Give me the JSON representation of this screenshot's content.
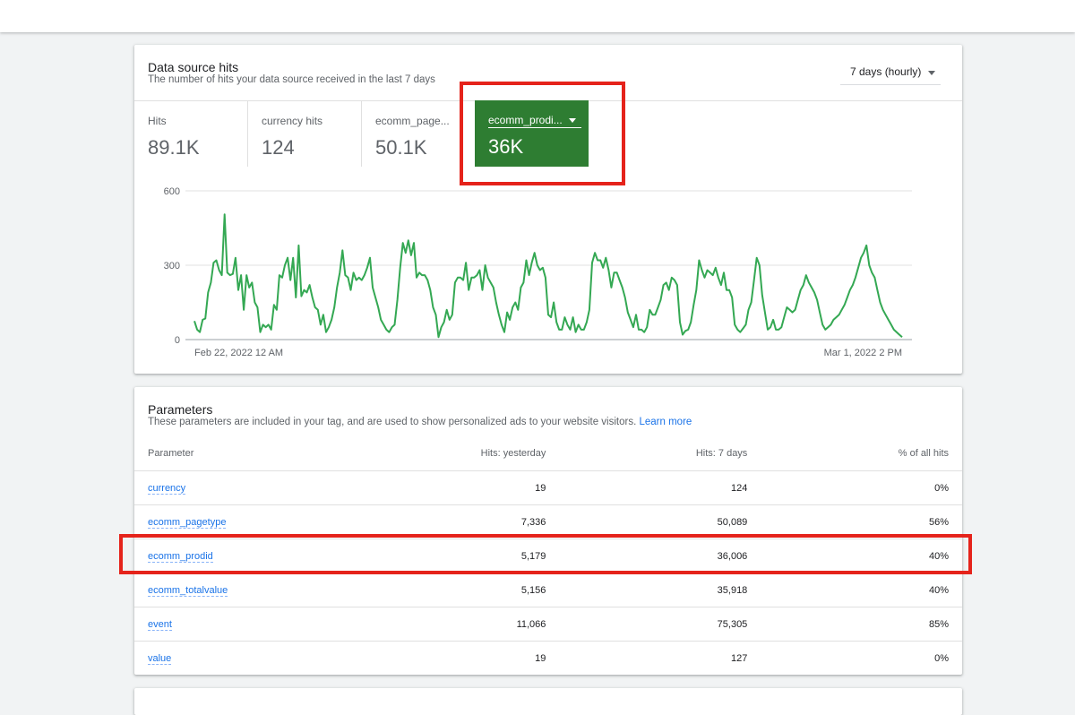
{
  "hits_card": {
    "title": "Data source hits",
    "subtitle": "The number of hits your data source received in the last 7 days",
    "range_select": "7 days (hourly)",
    "metrics": [
      {
        "label": "Hits",
        "value": "89.1K"
      },
      {
        "label": "currency hits",
        "value": "124"
      },
      {
        "label": "ecomm_page...",
        "value": "50.1K"
      },
      {
        "label": "ecomm_prodi...",
        "value": "36K",
        "selected": true
      }
    ]
  },
  "chart_data": {
    "type": "line",
    "ylim": [
      0,
      600
    ],
    "yticks": [
      "0",
      "300",
      "600"
    ],
    "x_start_label": "Feb 22, 2022 12 AM",
    "x_end_label": "Mar 1, 2022 2 PM",
    "series": [
      {
        "color": "#34a853",
        "values": [
          75,
          40,
          30,
          80,
          85,
          190,
          230,
          310,
          320,
          280,
          260,
          505,
          270,
          260,
          265,
          330,
          200,
          260,
          120,
          260,
          210,
          230,
          150,
          130,
          30,
          60,
          50,
          60,
          40,
          140,
          120,
          260,
          250,
          300,
          330,
          240,
          330,
          170,
          380,
          175,
          200,
          190,
          220,
          170,
          130,
          120,
          60,
          100,
          30,
          50,
          80,
          130,
          210,
          270,
          360,
          260,
          250,
          200,
          270,
          240,
          250,
          240,
          260,
          290,
          330,
          210,
          170,
          130,
          80,
          60,
          40,
          30,
          50,
          60,
          160,
          290,
          390,
          350,
          400,
          340,
          390,
          250,
          270,
          260,
          260,
          240,
          200,
          130,
          100,
          10,
          50,
          70,
          120,
          80,
          100,
          230,
          250,
          250,
          240,
          310,
          200,
          250,
          250,
          260,
          280,
          200,
          300,
          250,
          230,
          210,
          150,
          100,
          60,
          30,
          110,
          80,
          130,
          150,
          120,
          210,
          230,
          320,
          260,
          310,
          350,
          300,
          280,
          290,
          250,
          100,
          90,
          150,
          70,
          40,
          40,
          90,
          60,
          40,
          90,
          30,
          60,
          40,
          40,
          70,
          120,
          310,
          350,
          320,
          320,
          290,
          330,
          280,
          210,
          270,
          270,
          240,
          210,
          170,
          110,
          80,
          50,
          100,
          40,
          40,
          30,
          50,
          120,
          100,
          100,
          130,
          160,
          220,
          230,
          200,
          250,
          240,
          220,
          70,
          20,
          35,
          40,
          70,
          140,
          200,
          320,
          280,
          250,
          280,
          270,
          260,
          290,
          250,
          220,
          270,
          200,
          200,
          170,
          60,
          40,
          30,
          45,
          60,
          120,
          150,
          240,
          330,
          300,
          180,
          110,
          40,
          50,
          80,
          40,
          40,
          50,
          90,
          130,
          120,
          110,
          120,
          160,
          200,
          220,
          260,
          230,
          210,
          190,
          160,
          110,
          60,
          40,
          50,
          60,
          80,
          90,
          100,
          120,
          140,
          170,
          200,
          220,
          250,
          290,
          330,
          350,
          380,
          300,
          270,
          250,
          200,
          150,
          120,
          100,
          80,
          60,
          40,
          30,
          20,
          10
        ]
      }
    ]
  },
  "params_card": {
    "title": "Parameters",
    "subtitle": "These parameters are included in your tag, and are used to show personalized ads to your website visitors.",
    "learn_more": "Learn more",
    "columns": [
      "Parameter",
      "Hits: yesterday",
      "Hits: 7 days",
      "% of all hits"
    ],
    "rows": [
      [
        "currency",
        "19",
        "124",
        "0%"
      ],
      [
        "ecomm_pagetype",
        "7,336",
        "50,089",
        "56%"
      ],
      [
        "ecomm_prodid",
        "5,179",
        "36,006",
        "40%"
      ],
      [
        "ecomm_totalvalue",
        "5,156",
        "35,918",
        "40%"
      ],
      [
        "event",
        "11,066",
        "75,305",
        "85%"
      ],
      [
        "value",
        "19",
        "127",
        "0%"
      ]
    ]
  },
  "colors": {
    "selected_metric": "#2e7d32",
    "chart_line": "#34a853",
    "highlight": "#e5231b",
    "link": "#1a73e8"
  }
}
